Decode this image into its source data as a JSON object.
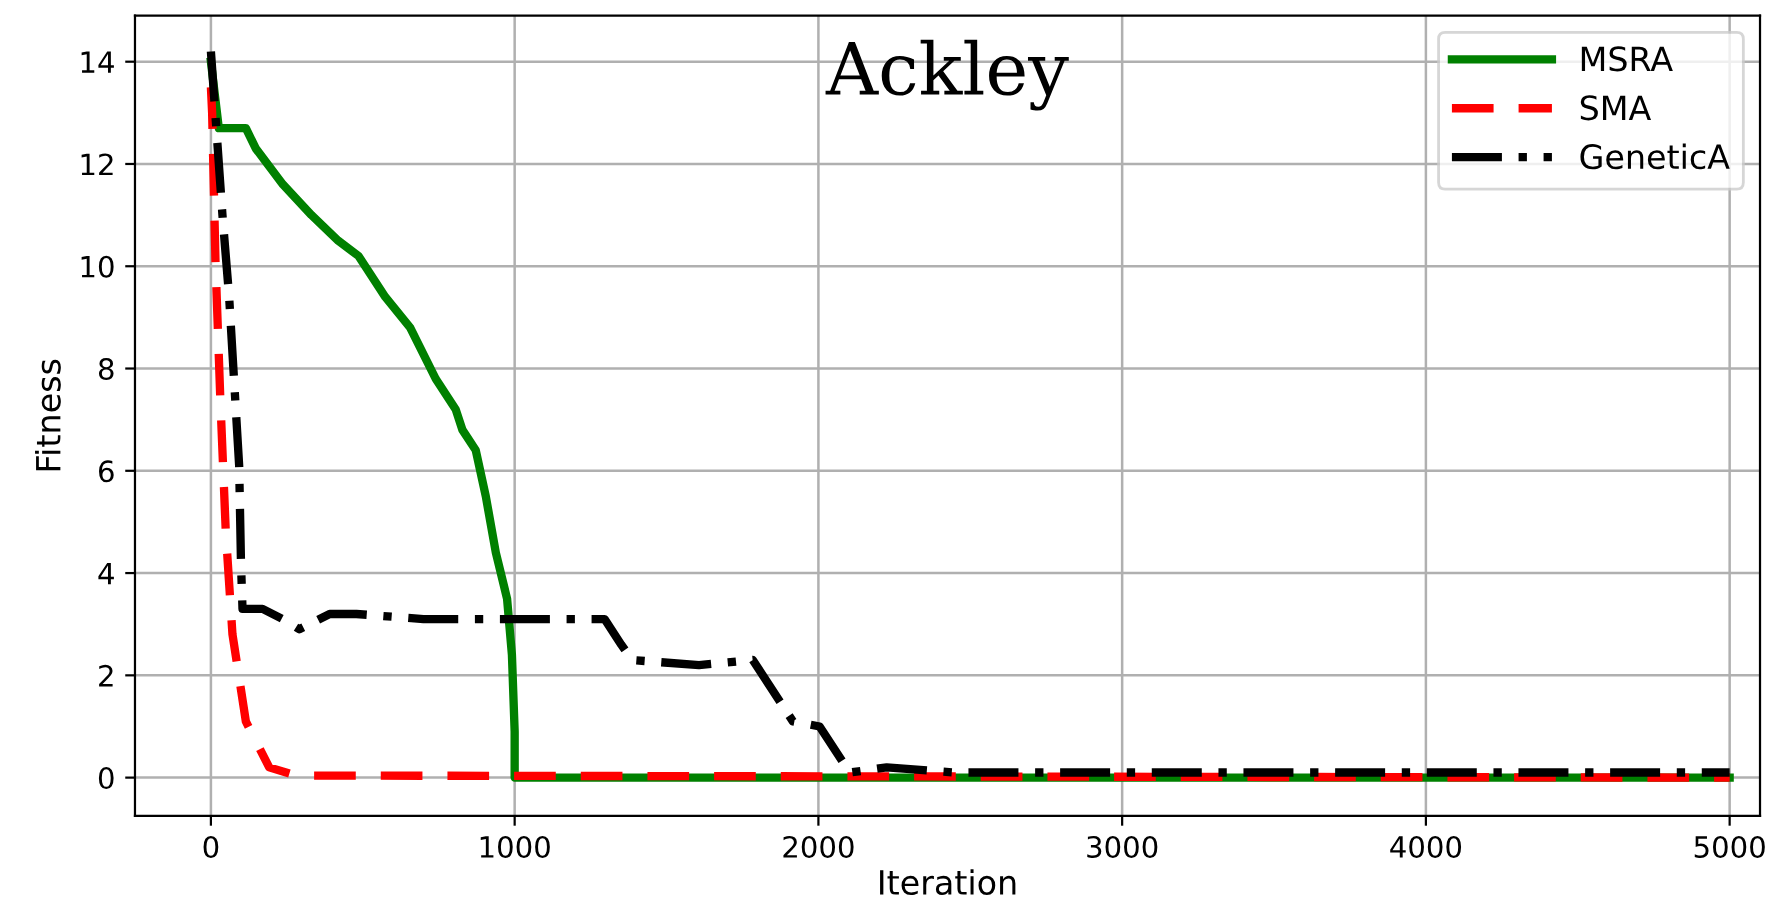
{
  "chart_data": {
    "type": "line",
    "title": "Ackley",
    "xlabel": "Iteration",
    "ylabel": "Fitness",
    "xlim": [
      -250,
      5100
    ],
    "ylim": [
      -0.75,
      14.9
    ],
    "xticks": [
      0,
      1000,
      2000,
      3000,
      4000,
      5000
    ],
    "yticks": [
      0,
      2,
      4,
      6,
      8,
      10,
      12,
      14
    ],
    "grid": true,
    "legend": "top right",
    "marker": "none",
    "series": [
      {
        "name": "MSRA",
        "color": "#008000",
        "line_style": "solid",
        "x": [
          0,
          26,
          115,
          148,
          237,
          331,
          419,
          486,
          574,
          656,
          740,
          806,
          828,
          872,
          905,
          938,
          975,
          991,
          1000,
          1000,
          5000
        ],
        "values": [
          14,
          12.7,
          12.7,
          12.3,
          11.6,
          11.0,
          10.5,
          10.2,
          9.4,
          8.8,
          7.8,
          7.2,
          6.8,
          6.4,
          5.5,
          4.4,
          3.5,
          2.4,
          0.9,
          0,
          0
        ]
      },
      {
        "name": "SMA",
        "color": "#ff0000",
        "line_style": "dashed",
        "x": [
          0,
          4,
          15,
          31,
          49,
          71,
          115,
          192,
          280,
          5000
        ],
        "values": [
          13.5,
          13,
          10.1,
          7.4,
          4.8,
          2.8,
          1.1,
          0.2,
          0.04,
          0
        ]
      },
      {
        "name": "GeneticA",
        "color": "#000000",
        "line_style": "dashdot",
        "x": [
          0,
          38,
          60,
          93,
          99,
          104,
          170,
          236,
          291,
          391,
          479,
          700,
          1296,
          1351,
          1386,
          1607,
          1784,
          1916,
          2004,
          2103,
          2225,
          2446,
          5000
        ],
        "values": [
          14.2,
          11,
          9.4,
          6.1,
          4.2,
          3.3,
          3.3,
          3.1,
          2.9,
          3.2,
          3.2,
          3.1,
          3.1,
          2.6,
          2.3,
          2.2,
          2.3,
          1.1,
          1.0,
          0.1,
          0.2,
          0.1,
          0.1
        ]
      }
    ]
  }
}
